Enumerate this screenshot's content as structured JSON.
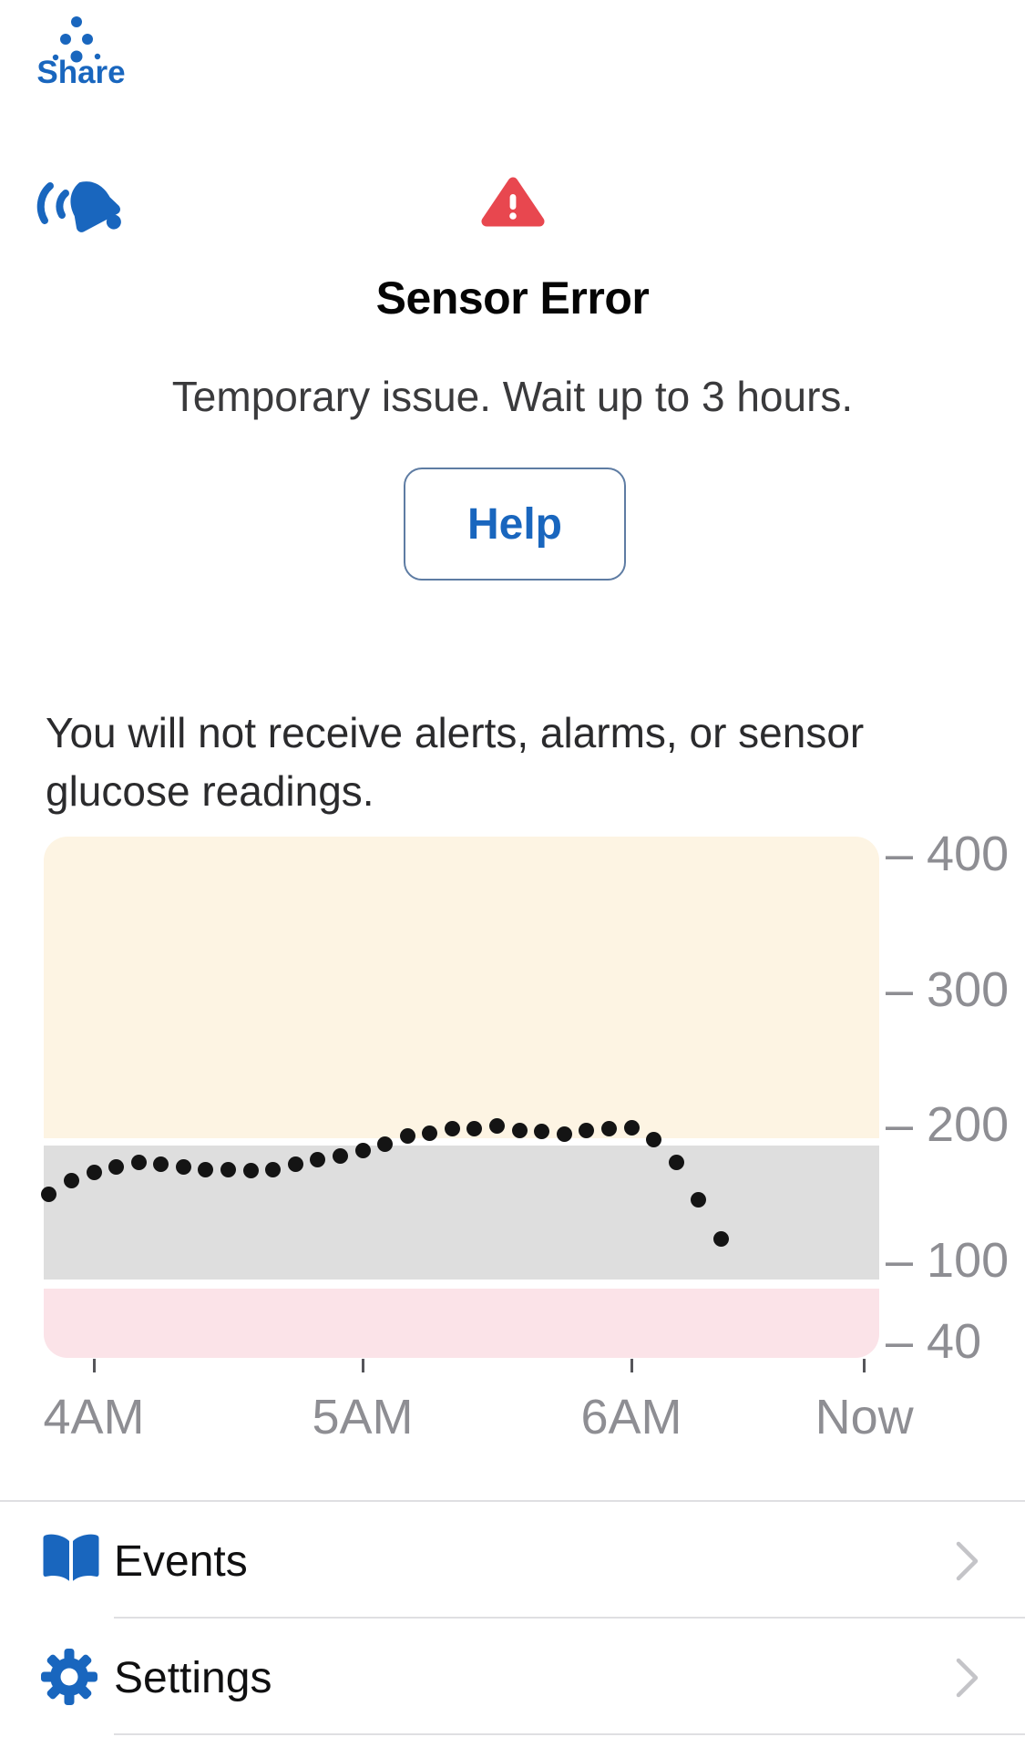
{
  "share": {
    "label": "Share"
  },
  "alert": {
    "title": "Sensor Error",
    "subtitle": "Temporary issue. Wait up to 3 hours.",
    "help_label": "Help",
    "warning_note": "You will not receive alerts, alarms, or sensor glucose readings."
  },
  "colors": {
    "accent_blue": "#1966BE",
    "alert_red": "#E8474F",
    "axis_gray": "#8E8E93",
    "band_high": "#FDF4E3",
    "band_target": "#DEDEDE",
    "band_low": "#FBE3E8",
    "dot_black": "#141414"
  },
  "chart_data": {
    "type": "scatter",
    "title": "",
    "xlabel": "",
    "ylabel": "",
    "grid": false,
    "legend": false,
    "ylim": [
      29,
      413
    ],
    "xlim_minutes_from_4am": [
      -11,
      175
    ],
    "y_ticks": [
      400,
      300,
      200,
      100,
      40
    ],
    "y_tick_labels": [
      "– 400",
      "– 300",
      "– 200",
      "– 100",
      "– 40"
    ],
    "x_ticks": [
      {
        "label": "4AM",
        "minute": 0
      },
      {
        "label": "5AM",
        "minute": 60
      },
      {
        "label": "6AM",
        "minute": 120
      },
      {
        "label": "Now",
        "minute": 172
      }
    ],
    "bands": [
      {
        "name": "high",
        "color": "#FDF4E3",
        "from": 190,
        "to": 413
      },
      {
        "name": "target",
        "color": "#DEDEDE",
        "from": 86,
        "to": 185
      },
      {
        "name": "low",
        "color": "#FBE3E8",
        "from": 28,
        "to": 79
      }
    ],
    "series": [
      {
        "name": "glucose_mg_dl",
        "start_minute_from_4am": -10,
        "step_minutes": 5,
        "values": [
          149,
          159,
          165,
          169,
          172,
          171,
          169,
          167,
          167,
          166,
          167,
          171,
          174,
          177,
          181,
          186,
          192,
          194,
          197,
          197,
          199,
          196,
          195,
          193,
          196,
          197,
          198,
          189,
          172,
          145,
          116
        ]
      }
    ]
  },
  "menu": {
    "items": [
      {
        "label": "Events"
      },
      {
        "label": "Settings"
      }
    ]
  }
}
